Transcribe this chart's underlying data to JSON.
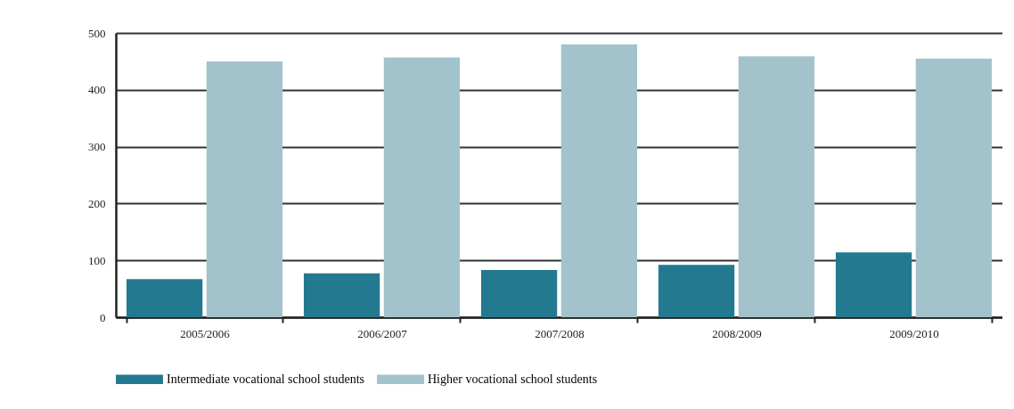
{
  "chart_data": {
    "type": "bar",
    "categories": [
      "2005/2006",
      "2006/2007",
      "2007/2008",
      "2008/2009",
      "2009/2010"
    ],
    "series": [
      {
        "name": "Intermediate vocational school students",
        "color": "#237a90",
        "values": [
          67,
          77,
          83,
          92,
          114
        ]
      },
      {
        "name": "Higher vocational school students",
        "color": "#a3c3cc",
        "values": [
          450,
          457,
          480,
          459,
          455
        ]
      }
    ],
    "ylim": [
      0,
      500
    ],
    "yticks": [
      0,
      100,
      200,
      300,
      400,
      500
    ],
    "grid": "y",
    "legend": "bottom"
  }
}
